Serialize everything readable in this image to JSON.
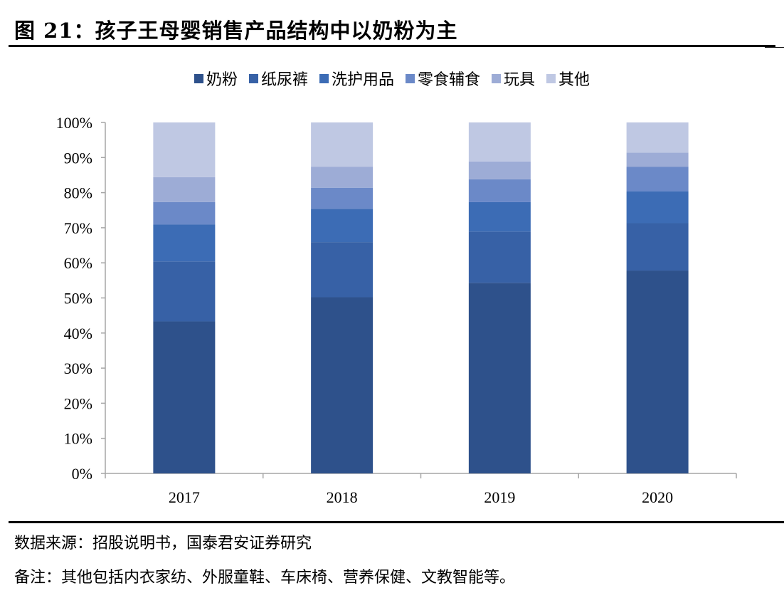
{
  "title": "图 21：孩子王母婴销售产品结构中以奶粉为主",
  "source": "数据来源：招股说明书，国泰君安证券研究",
  "remark": "备注：其他包括内衣家纺、外服童鞋、车床椅、营养保健、文教智能等。",
  "chart_data": {
    "type": "bar",
    "stacked": true,
    "title": "",
    "xlabel": "",
    "ylabel": "",
    "categories": [
      "2017",
      "2018",
      "2019",
      "2020"
    ],
    "ylim": [
      0,
      100
    ],
    "yticks": [
      "0%",
      "10%",
      "20%",
      "30%",
      "40%",
      "50%",
      "60%",
      "70%",
      "80%",
      "90%",
      "100%"
    ],
    "grid": false,
    "legend_position": "top",
    "series": [
      {
        "name": "奶粉",
        "color": "#2E518B",
        "values": [
          43.3,
          50.2,
          54.3,
          57.8
        ]
      },
      {
        "name": "纸尿裤",
        "color": "#3761A6",
        "values": [
          17.1,
          15.7,
          14.6,
          13.5
        ]
      },
      {
        "name": "洗护用品",
        "color": "#3C6CB5",
        "values": [
          10.5,
          9.5,
          8.4,
          9.1
        ]
      },
      {
        "name": "零食辅食",
        "color": "#6B89C8",
        "values": [
          6.4,
          6.0,
          6.5,
          7.0
        ]
      },
      {
        "name": "玩具",
        "color": "#9DACD6",
        "values": [
          7.1,
          6.0,
          5.1,
          4.0
        ]
      },
      {
        "name": "其他",
        "color": "#BFC8E3",
        "values": [
          15.6,
          12.6,
          11.1,
          8.6
        ]
      }
    ]
  }
}
